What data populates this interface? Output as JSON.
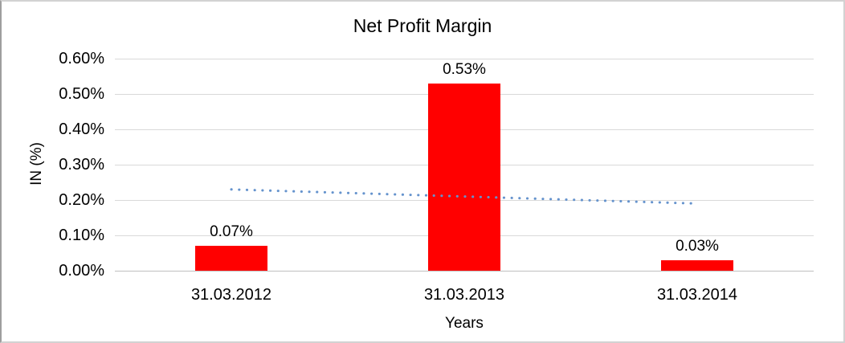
{
  "chart_data": {
    "type": "bar",
    "title": "Net Profit Margin",
    "xlabel": "Years",
    "ylabel": "IN (%)",
    "categories": [
      "31.03.2012",
      "31.03.2013",
      "31.03.2014"
    ],
    "series": [
      {
        "name": "Net Profit Margin",
        "values": [
          0.07,
          0.53,
          0.03
        ]
      }
    ],
    "bar_labels": [
      "0.07%",
      "0.53%",
      "0.03%"
    ],
    "yticks": [
      "0.00%",
      "0.10%",
      "0.20%",
      "0.30%",
      "0.40%",
      "0.50%",
      "0.60%"
    ],
    "ytick_values": [
      0,
      0.1,
      0.2,
      0.3,
      0.4,
      0.5,
      0.6
    ],
    "ylim": [
      0,
      0.6
    ],
    "grid": "horizontal",
    "legend": "none",
    "colors": {
      "bar": "#ff0000",
      "trendline": "#6593cd",
      "gridline": "#d9d9d9",
      "axis_line": "#bfbfbf",
      "text": "#000000"
    },
    "trendline": {
      "type": "linear",
      "style": "dotted",
      "start_value": 0.23,
      "end_value": 0.19
    }
  }
}
